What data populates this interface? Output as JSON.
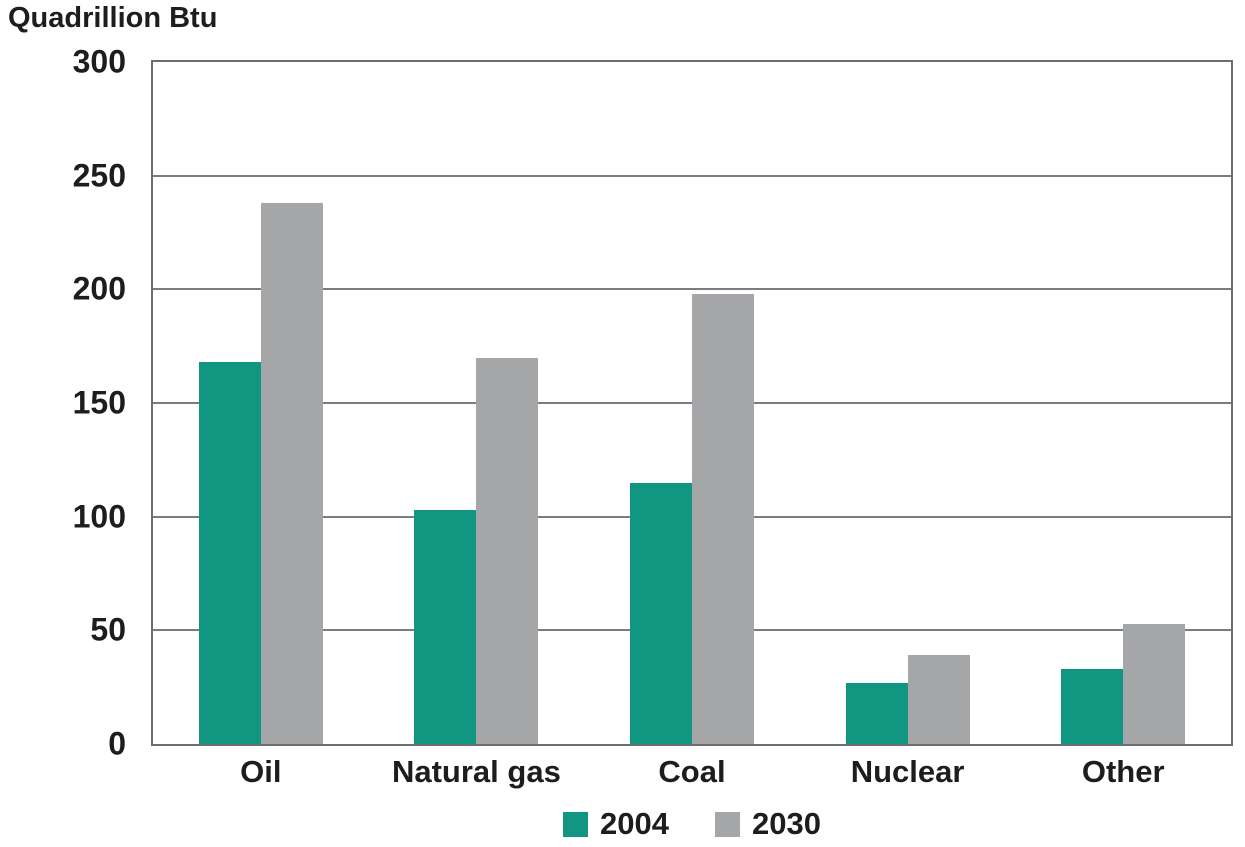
{
  "chart_data": {
    "type": "bar",
    "title": "Quadrillion Btu",
    "ylabel": "Quadrillion Btu",
    "xlabel": "",
    "categories": [
      "Oil",
      "Natural gas",
      "Coal",
      "Nuclear",
      "Other"
    ],
    "series": [
      {
        "name": "2004",
        "color": "#119681",
        "values": [
          168,
          103,
          115,
          27,
          33
        ]
      },
      {
        "name": "2030",
        "color": "#a4a6a8",
        "values": [
          238,
          170,
          198,
          39,
          53
        ]
      }
    ],
    "ylim": [
      0,
      300
    ],
    "yticks": [
      0,
      50,
      100,
      150,
      200,
      250,
      300
    ],
    "grid": true,
    "legend_position": "bottom",
    "colors": {
      "axis_border": "#6d6e70",
      "gridline": "#7b7c7f",
      "text": "#1d1d1b",
      "background": "#ffffff"
    }
  }
}
